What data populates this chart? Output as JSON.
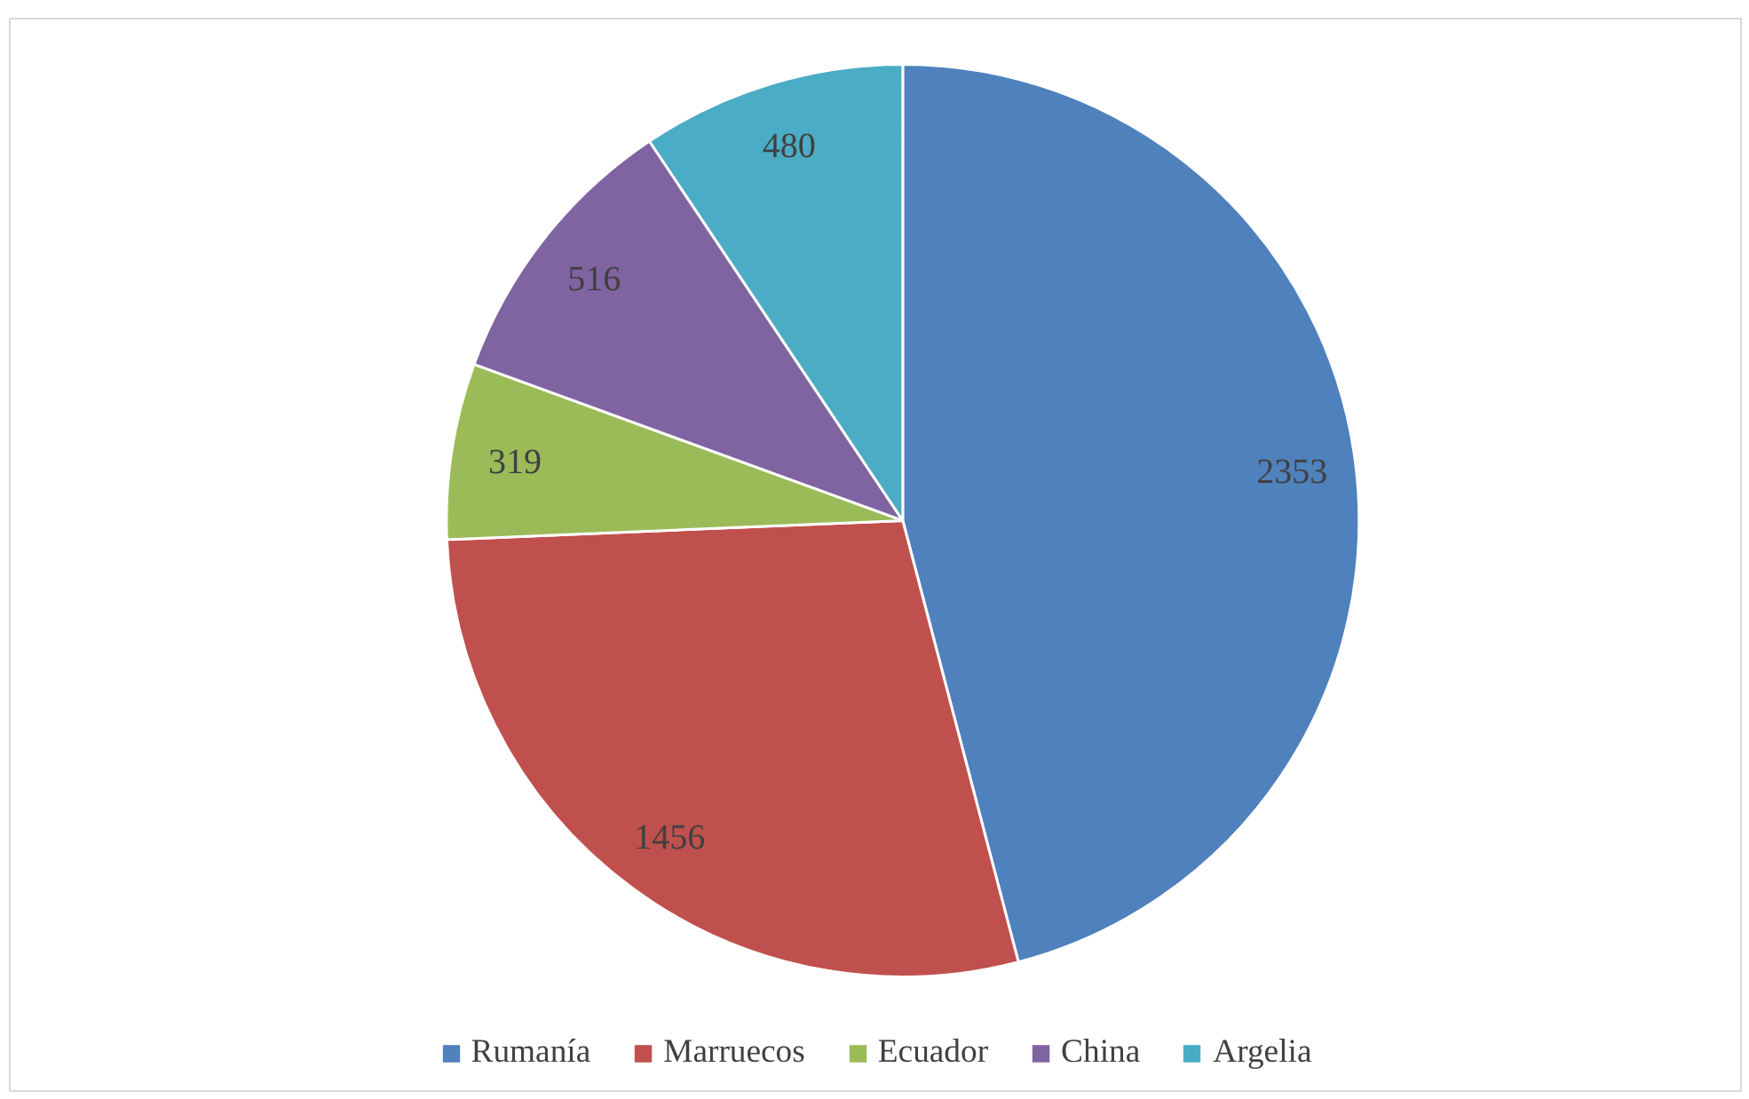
{
  "chart_data": {
    "type": "pie",
    "categories": [
      "Rumanía",
      "Marruecos",
      "Ecuador",
      "China",
      "Argelia"
    ],
    "values": [
      2353,
      1456,
      319,
      516,
      480
    ],
    "colors": [
      "#4f81bd",
      "#c0504d",
      "#9bbb59",
      "#8064a2",
      "#4bacc6"
    ],
    "data_labels": true,
    "legend": "bottom"
  }
}
